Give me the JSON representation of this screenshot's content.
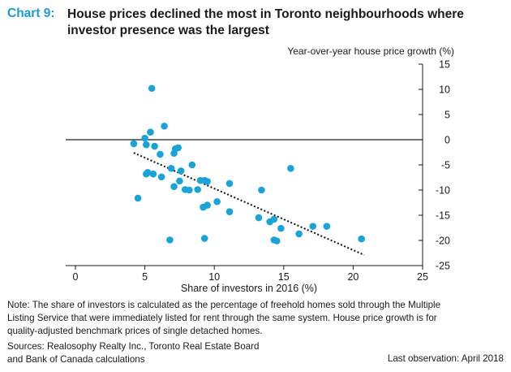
{
  "header": {
    "chart_number": "Chart 9:",
    "title_line1": "House prices declined the most in Toronto neighbourhoods where",
    "title_line2": "investor presence was the largest"
  },
  "footer": {
    "note_line1": "Note: The share of investors is calculated as the percentage of freehold homes sold through the Multiple",
    "note_line2": "Listing Service that were immediately listed for rent through the same system. House price growth is for",
    "note_line3": "quality-adjusted benchmark prices of single detached homes.",
    "sources_line1": "Sources: Realosophy Realty Inc., Toronto Real Estate Board",
    "sources_line2": "and Bank of Canada calculations",
    "last_observation": "Last observation: April 2018"
  },
  "colors": {
    "points": "#1ba3d8",
    "title_accent": "#1a9ad6",
    "axis": "#1a1a1a"
  },
  "chart_data": {
    "type": "scatter",
    "xlabel": "Share of investors in 2016 (%)",
    "ylabel": "Year-over-year house price growth (%)",
    "xlim": [
      0,
      25
    ],
    "ylim": [
      -25,
      15
    ],
    "xticks": [
      0,
      5,
      10,
      15,
      20,
      25
    ],
    "yticks": [
      15,
      10,
      5,
      0,
      -5,
      -10,
      -15,
      -20,
      -25
    ],
    "y_axis_position": "right",
    "zero_line": true,
    "grid": false,
    "trendline": {
      "style": "dotted",
      "from": [
        4.2,
        -2.6
      ],
      "to": [
        20.8,
        -22.9
      ]
    },
    "points": [
      {
        "x": 4.2,
        "y": -0.8
      },
      {
        "x": 4.5,
        "y": -11.6
      },
      {
        "x": 5.0,
        "y": 0.3
      },
      {
        "x": 5.1,
        "y": -1.0
      },
      {
        "x": 5.1,
        "y": -6.8
      },
      {
        "x": 5.2,
        "y": -6.5
      },
      {
        "x": 5.4,
        "y": 1.5
      },
      {
        "x": 5.5,
        "y": 10.2
      },
      {
        "x": 5.6,
        "y": -6.8
      },
      {
        "x": 5.7,
        "y": -1.3
      },
      {
        "x": 6.1,
        "y": -2.9
      },
      {
        "x": 6.2,
        "y": -7.4
      },
      {
        "x": 6.4,
        "y": 2.7
      },
      {
        "x": 6.8,
        "y": -19.9
      },
      {
        "x": 6.9,
        "y": -5.7
      },
      {
        "x": 7.1,
        "y": -9.3
      },
      {
        "x": 7.1,
        "y": -2.7
      },
      {
        "x": 7.2,
        "y": -1.8
      },
      {
        "x": 7.4,
        "y": -1.6
      },
      {
        "x": 7.5,
        "y": -8.2
      },
      {
        "x": 7.6,
        "y": -6.2
      },
      {
        "x": 7.9,
        "y": -9.9
      },
      {
        "x": 8.2,
        "y": -10.0
      },
      {
        "x": 8.4,
        "y": -5.0
      },
      {
        "x": 8.8,
        "y": -9.9
      },
      {
        "x": 9.0,
        "y": -8.1
      },
      {
        "x": 9.2,
        "y": -13.4
      },
      {
        "x": 9.3,
        "y": -19.6
      },
      {
        "x": 9.3,
        "y": -8.1
      },
      {
        "x": 9.5,
        "y": -13.0
      },
      {
        "x": 9.5,
        "y": -8.3
      },
      {
        "x": 10.2,
        "y": -12.3
      },
      {
        "x": 11.1,
        "y": -14.3
      },
      {
        "x": 11.1,
        "y": -8.7
      },
      {
        "x": 13.2,
        "y": -15.5
      },
      {
        "x": 13.4,
        "y": -10.0
      },
      {
        "x": 14.0,
        "y": -16.3
      },
      {
        "x": 14.3,
        "y": -15.8
      },
      {
        "x": 14.3,
        "y": -19.9
      },
      {
        "x": 14.5,
        "y": -20.1
      },
      {
        "x": 14.8,
        "y": -17.6
      },
      {
        "x": 15.5,
        "y": -5.7
      },
      {
        "x": 16.1,
        "y": -18.7
      },
      {
        "x": 17.1,
        "y": -17.2
      },
      {
        "x": 18.1,
        "y": -17.2
      },
      {
        "x": 20.6,
        "y": -19.7
      }
    ]
  }
}
